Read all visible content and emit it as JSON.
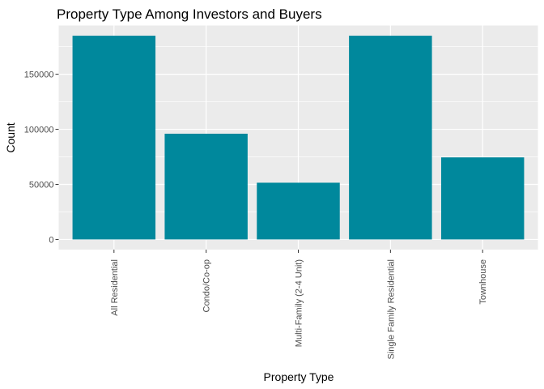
{
  "chart_data": {
    "type": "bar",
    "title": "Property Type Among Investors and Buyers",
    "xlabel": "Property Type",
    "ylabel": "Count",
    "categories": [
      "All Residential",
      "Condo/Co-op",
      "Multi-Family (2-4 Unit)",
      "Single Family Residential",
      "Townhouse"
    ],
    "values": [
      185000,
      96000,
      51500,
      185000,
      74500
    ],
    "yticks": [
      0,
      50000,
      100000,
      150000
    ],
    "ytick_labels": [
      "0",
      "50000",
      "100000",
      "150000"
    ],
    "ylim": [
      -9250,
      194250
    ],
    "bar_color": "#00889c",
    "panel_background": "#ebebeb",
    "grid": true,
    "legend": "none"
  }
}
